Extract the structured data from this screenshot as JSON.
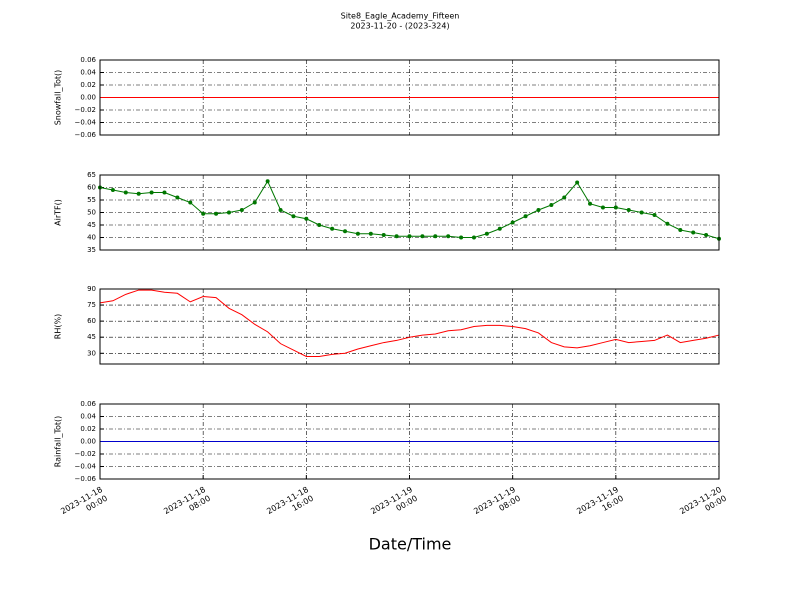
{
  "figure": {
    "title": "Site8_Eagle_Academy_Fifteen",
    "subtitle": "2023-11-20 - (2023-324)",
    "xlabel": "Date/Time",
    "x": [
      "2023-11-18 00:00",
      "2023-11-18 01:00",
      "2023-11-18 02:00",
      "2023-11-18 03:00",
      "2023-11-18 04:00",
      "2023-11-18 05:00",
      "2023-11-18 06:00",
      "2023-11-18 07:00",
      "2023-11-18 08:00",
      "2023-11-18 09:00",
      "2023-11-18 10:00",
      "2023-11-18 11:00",
      "2023-11-18 12:00",
      "2023-11-18 13:00",
      "2023-11-18 14:00",
      "2023-11-18 15:00",
      "2023-11-18 16:00",
      "2023-11-18 17:00",
      "2023-11-18 18:00",
      "2023-11-18 19:00",
      "2023-11-18 20:00",
      "2023-11-18 21:00",
      "2023-11-18 22:00",
      "2023-11-18 23:00",
      "2023-11-19 00:00",
      "2023-11-19 01:00",
      "2023-11-19 02:00",
      "2023-11-19 03:00",
      "2023-11-19 04:00",
      "2023-11-19 05:00",
      "2023-11-19 06:00",
      "2023-11-19 07:00",
      "2023-11-19 08:00",
      "2023-11-19 09:00",
      "2023-11-19 10:00",
      "2023-11-19 11:00",
      "2023-11-19 12:00",
      "2023-11-19 13:00",
      "2023-11-19 14:00",
      "2023-11-19 15:00",
      "2023-11-19 16:00",
      "2023-11-19 17:00",
      "2023-11-19 18:00",
      "2023-11-19 19:00",
      "2023-11-19 20:00",
      "2023-11-19 21:00",
      "2023-11-19 22:00",
      "2023-11-19 23:00",
      "2023-11-20 00:00"
    ],
    "xlim": [
      "2023-11-18 00:00",
      "2023-11-20 00:00"
    ],
    "xticks": [
      {
        "value": "2023-11-18 00:00",
        "label": "2023-11-18\n00:00"
      },
      {
        "value": "2023-11-18 08:00",
        "label": "2023-11-18\n08:00"
      },
      {
        "value": "2023-11-18 16:00",
        "label": "2023-11-18\n16:00"
      },
      {
        "value": "2023-11-19 00:00",
        "label": "2023-11-19\n00:00"
      },
      {
        "value": "2023-11-19 08:00",
        "label": "2023-11-19\n08:00"
      },
      {
        "value": "2023-11-19 16:00",
        "label": "2023-11-19\n16:00"
      },
      {
        "value": "2023-11-20 00:00",
        "label": "2023-11-20\n00:00"
      }
    ]
  },
  "chart_data": [
    {
      "type": "line",
      "ylabel": "Snowfall_Tot()",
      "color": "#ff0000",
      "grid": true,
      "markers": false,
      "values": [
        0,
        0,
        0,
        0,
        0,
        0,
        0,
        0,
        0,
        0,
        0,
        0,
        0,
        0,
        0,
        0,
        0,
        0,
        0,
        0,
        0,
        0,
        0,
        0,
        0,
        0,
        0,
        0,
        0,
        0,
        0,
        0,
        0,
        0,
        0,
        0,
        0,
        0,
        0,
        0,
        0,
        0,
        0,
        0,
        0,
        0,
        0,
        0,
        0
      ],
      "ylim": [
        -0.06,
        0.06
      ],
      "yticks": [
        {
          "value": -0.06,
          "label": "−0.06"
        },
        {
          "value": -0.04,
          "label": "−0.04"
        },
        {
          "value": -0.02,
          "label": "−0.02"
        },
        {
          "value": 0,
          "label": "0.00"
        },
        {
          "value": 0.02,
          "label": "0.02"
        },
        {
          "value": 0.04,
          "label": "0.04"
        },
        {
          "value": 0.06,
          "label": "0.06"
        }
      ]
    },
    {
      "type": "line",
      "ylabel": "AirTF()",
      "color": "#007700",
      "grid": true,
      "markers": true,
      "values": [
        60,
        59,
        58,
        57.5,
        58,
        58,
        56,
        54,
        49.5,
        49.5,
        50,
        51,
        54,
        62.5,
        51,
        48.5,
        47.5,
        45,
        43.5,
        42.5,
        41.5,
        41.5,
        41,
        40.5,
        40.5,
        40.5,
        40.5,
        40.5,
        40,
        40,
        41.5,
        43.5,
        46,
        48.5,
        51,
        53,
        56,
        62,
        53.5,
        52,
        52,
        51,
        50,
        49,
        45.5,
        43,
        42,
        41,
        39.5
      ],
      "ylim": [
        35,
        65
      ],
      "yticks": [
        35,
        40,
        45,
        50,
        55,
        60,
        65
      ]
    },
    {
      "type": "line",
      "ylabel": "RH(%)",
      "color": "#ff0000",
      "grid": true,
      "markers": false,
      "values": [
        77,
        79,
        85,
        89,
        89,
        87,
        86,
        78,
        83,
        82,
        72,
        66,
        57,
        50,
        39,
        33,
        27,
        27,
        29,
        30,
        34,
        37,
        40,
        42,
        45,
        47,
        48,
        51,
        52,
        55,
        56,
        56,
        55,
        53,
        49,
        40,
        36,
        35,
        37,
        40,
        43,
        40,
        41,
        42,
        47,
        40,
        42,
        44,
        47
      ],
      "ylim": [
        20,
        90
      ],
      "yticks": [
        30,
        45,
        60,
        75,
        90
      ]
    },
    {
      "type": "line",
      "ylabel": "Rainfall_Tot()",
      "color": "#0000cc",
      "grid": true,
      "markers": false,
      "values": [
        0,
        0,
        0,
        0,
        0,
        0,
        0,
        0,
        0,
        0,
        0,
        0,
        0,
        0,
        0,
        0,
        0,
        0,
        0,
        0,
        0,
        0,
        0,
        0,
        0,
        0,
        0,
        0,
        0,
        0,
        0,
        0,
        0,
        0,
        0,
        0,
        0,
        0,
        0,
        0,
        0,
        0,
        0,
        0,
        0,
        0,
        0,
        0,
        0
      ],
      "ylim": [
        -0.06,
        0.06
      ],
      "yticks": [
        {
          "value": -0.06,
          "label": "−0.06"
        },
        {
          "value": -0.04,
          "label": "−0.04"
        },
        {
          "value": -0.02,
          "label": "−0.02"
        },
        {
          "value": 0,
          "label": "0.00"
        },
        {
          "value": 0.02,
          "label": "0.02"
        },
        {
          "value": 0.04,
          "label": "0.04"
        },
        {
          "value": 0.06,
          "label": "0.06"
        }
      ]
    }
  ]
}
